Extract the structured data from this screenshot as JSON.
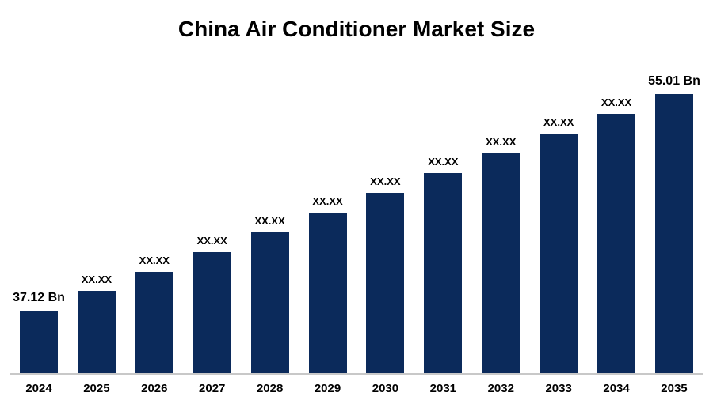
{
  "title": "China Air Conditioner Market Size",
  "colors": {
    "bar": "#0b2a5b",
    "axis_line": "#c8c8c8",
    "title": "#000000",
    "background": "#ffffff"
  },
  "chart_data": {
    "type": "bar",
    "title": "China Air Conditioner Market Size",
    "categories": [
      "2024",
      "2025",
      "2026",
      "2027",
      "2028",
      "2029",
      "2030",
      "2031",
      "2032",
      "2033",
      "2034",
      "2035"
    ],
    "labels": [
      "37.12 Bn",
      "XX.XX",
      "XX.XX",
      "XX.XX",
      "XX.XX",
      "XX.XX",
      "XX.XX",
      "XX.XX",
      "XX.XX",
      "XX.XX",
      "XX.XX",
      "55.01 Bn"
    ],
    "values": [
      37.12,
      38.75,
      40.37,
      42.0,
      43.62,
      45.25,
      46.88,
      48.5,
      50.13,
      51.75,
      53.38,
      55.01
    ],
    "values_note": "Only 2024 (37.12 Bn) and 2035 (55.01 Bn) are shown; intermediate bars are masked as XX.XX and values are estimated by interpolation to match bar heights",
    "unit": "Bn",
    "xlabel": "",
    "ylabel": "",
    "ylim": [
      32,
      56
    ],
    "grid": false,
    "legend": false
  }
}
